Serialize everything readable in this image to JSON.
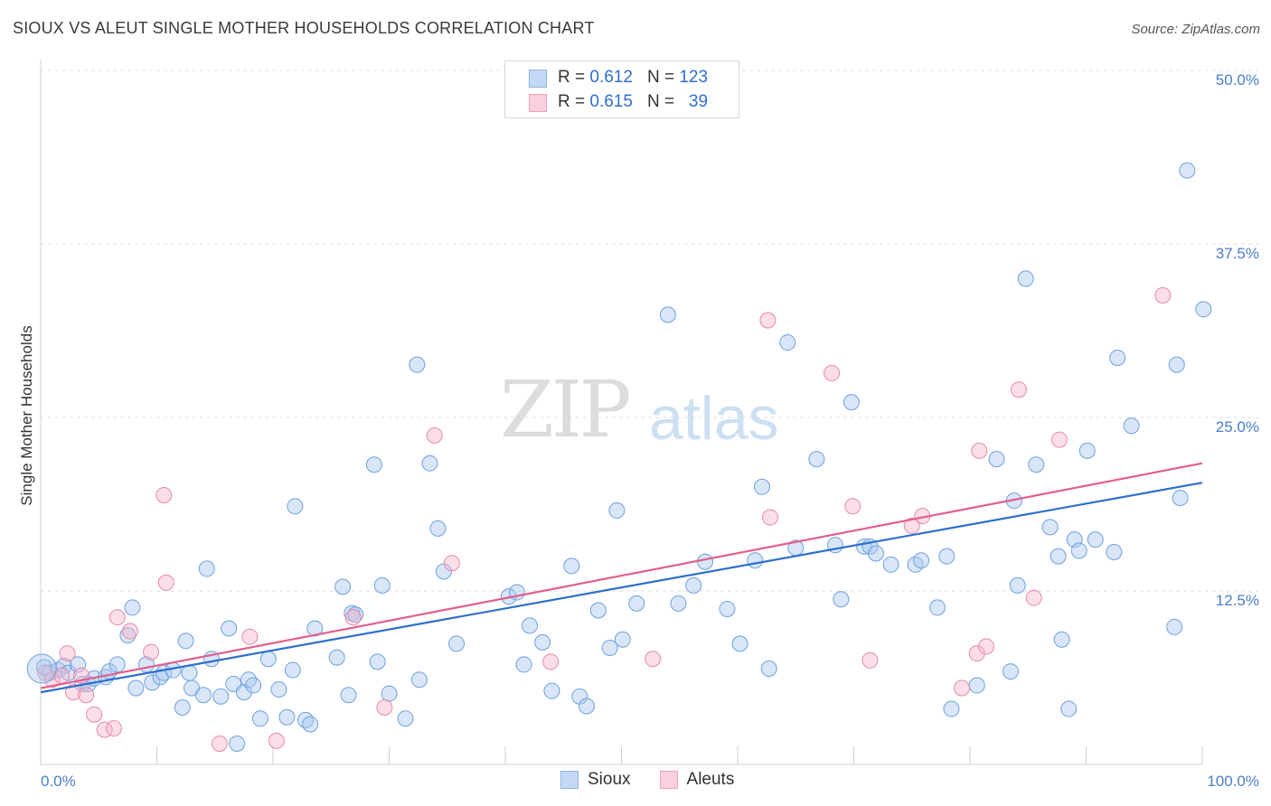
{
  "title": "SIOUX VS ALEUT SINGLE MOTHER HOUSEHOLDS CORRELATION CHART",
  "source": "Source: ZipAtlas.com",
  "watermark": {
    "zip": "ZIP",
    "atlas": "atlas"
  },
  "legend_top": {
    "rows": [
      {
        "r_label": "R =",
        "r_value": "0.612",
        "n_label": "N =",
        "n_value": "123",
        "color": "#a9c8f0"
      },
      {
        "r_label": "R =",
        "r_value": "0.615",
        "n_label": "N =",
        "n_value": "39",
        "color": "#f6b6cb"
      }
    ]
  },
  "legend_bottom": [
    {
      "label": "Sioux",
      "color": "#a9c8f0"
    },
    {
      "label": "Aleuts",
      "color": "#f6b6cb"
    }
  ],
  "chart_data": {
    "type": "scatter",
    "title": "SIOUX VS ALEUT SINGLE MOTHER HOUSEHOLDS CORRELATION CHART",
    "xlabel": "",
    "ylabel": "Single Mother Households",
    "xlim": [
      0,
      100
    ],
    "ylim": [
      0,
      50
    ],
    "x_tick_labels": [
      "0.0%",
      "100.0%"
    ],
    "y_ticks": [
      12.5,
      25.0,
      37.5,
      50.0
    ],
    "y_tick_labels": [
      "12.5%",
      "25.0%",
      "37.5%",
      "50.0%"
    ],
    "grid": true,
    "series": [
      {
        "name": "Sioux",
        "color": "#a9c8f0",
        "edge": "#6fa1dd",
        "line_color": "#2d6fcc",
        "trend": {
          "x": [
            0,
            100
          ],
          "y": [
            5.2,
            20.3
          ]
        },
        "points": [
          [
            0.3,
            7.0
          ],
          [
            0.8,
            6.6
          ],
          [
            1.5,
            6.8
          ],
          [
            2.0,
            7.1
          ],
          [
            2.4,
            6.6
          ],
          [
            3.2,
            7.2
          ],
          [
            3.6,
            5.8
          ],
          [
            4.1,
            5.8
          ],
          [
            4.6,
            6.2
          ],
          [
            5.6,
            6.3
          ],
          [
            5.9,
            6.7
          ],
          [
            6.6,
            7.2
          ],
          [
            7.5,
            9.3
          ],
          [
            7.9,
            11.3
          ],
          [
            8.2,
            5.5
          ],
          [
            9.1,
            7.2
          ],
          [
            9.6,
            5.9
          ],
          [
            10.3,
            6.3
          ],
          [
            10.6,
            6.6
          ],
          [
            11.4,
            6.8
          ],
          [
            12.2,
            4.1
          ],
          [
            12.5,
            8.9
          ],
          [
            12.8,
            6.6
          ],
          [
            13.0,
            5.5
          ],
          [
            14.0,
            5.0
          ],
          [
            14.3,
            14.1
          ],
          [
            14.7,
            7.6
          ],
          [
            15.5,
            4.9
          ],
          [
            16.2,
            9.8
          ],
          [
            16.6,
            5.8
          ],
          [
            16.9,
            1.5
          ],
          [
            17.5,
            5.2
          ],
          [
            17.9,
            6.1
          ],
          [
            18.3,
            5.7
          ],
          [
            18.9,
            3.3
          ],
          [
            19.6,
            7.6
          ],
          [
            20.5,
            5.4
          ],
          [
            21.2,
            3.4
          ],
          [
            21.7,
            6.8
          ],
          [
            21.9,
            18.6
          ],
          [
            22.8,
            3.2
          ],
          [
            23.2,
            2.9
          ],
          [
            23.6,
            9.8
          ],
          [
            25.5,
            7.7
          ],
          [
            26.0,
            12.8
          ],
          [
            26.5,
            5.0
          ],
          [
            26.8,
            10.9
          ],
          [
            27.1,
            10.8
          ],
          [
            28.7,
            21.6
          ],
          [
            29.0,
            7.4
          ],
          [
            29.4,
            12.9
          ],
          [
            30.0,
            5.1
          ],
          [
            31.4,
            3.3
          ],
          [
            32.4,
            28.8
          ],
          [
            32.6,
            6.1
          ],
          [
            33.5,
            21.7
          ],
          [
            34.2,
            17.0
          ],
          [
            34.7,
            13.9
          ],
          [
            35.8,
            8.7
          ],
          [
            40.3,
            12.1
          ],
          [
            41.0,
            12.4
          ],
          [
            41.6,
            7.2
          ],
          [
            42.1,
            10.0
          ],
          [
            43.2,
            8.8
          ],
          [
            44.0,
            5.3
          ],
          [
            45.7,
            14.3
          ],
          [
            46.4,
            4.9
          ],
          [
            47.0,
            4.2
          ],
          [
            48.0,
            11.1
          ],
          [
            49.0,
            8.4
          ],
          [
            49.6,
            18.3
          ],
          [
            50.1,
            9.0
          ],
          [
            51.3,
            11.6
          ],
          [
            54.0,
            32.4
          ],
          [
            54.9,
            11.6
          ],
          [
            56.2,
            12.9
          ],
          [
            57.2,
            14.6
          ],
          [
            59.1,
            11.2
          ],
          [
            60.2,
            8.7
          ],
          [
            61.5,
            14.7
          ],
          [
            62.1,
            20.0
          ],
          [
            62.7,
            6.9
          ],
          [
            64.3,
            30.4
          ],
          [
            65.0,
            15.6
          ],
          [
            66.8,
            22.0
          ],
          [
            68.4,
            15.8
          ],
          [
            68.9,
            11.9
          ],
          [
            69.8,
            26.1
          ],
          [
            70.9,
            15.7
          ],
          [
            71.4,
            15.7
          ],
          [
            71.9,
            15.2
          ],
          [
            73.2,
            14.4
          ],
          [
            75.3,
            14.4
          ],
          [
            75.8,
            14.7
          ],
          [
            77.2,
            11.3
          ],
          [
            78.0,
            15.0
          ],
          [
            78.4,
            4.0
          ],
          [
            80.6,
            5.7
          ],
          [
            82.3,
            22.0
          ],
          [
            83.5,
            6.7
          ],
          [
            83.8,
            19.0
          ],
          [
            84.1,
            12.9
          ],
          [
            84.8,
            35.0
          ],
          [
            85.7,
            21.6
          ],
          [
            86.9,
            17.1
          ],
          [
            87.6,
            15.0
          ],
          [
            87.9,
            9.0
          ],
          [
            88.5,
            4.0
          ],
          [
            89.0,
            16.2
          ],
          [
            89.4,
            15.4
          ],
          [
            90.1,
            22.6
          ],
          [
            90.8,
            16.2
          ],
          [
            92.4,
            15.3
          ],
          [
            92.7,
            29.3
          ],
          [
            93.9,
            24.4
          ],
          [
            97.6,
            9.9
          ],
          [
            97.8,
            28.8
          ],
          [
            98.1,
            19.2
          ],
          [
            98.7,
            42.8
          ],
          [
            100.1,
            32.8
          ]
        ]
      },
      {
        "name": "Aleuts",
        "color": "#f6b6cb",
        "edge": "#e78aa8",
        "line_color": "#e0608c",
        "trend": {
          "x": [
            0,
            100
          ],
          "y": [
            5.5,
            21.7
          ]
        },
        "points": [
          [
            0.4,
            6.6
          ],
          [
            1.0,
            6.1
          ],
          [
            1.8,
            6.4
          ],
          [
            2.3,
            8.0
          ],
          [
            2.8,
            5.2
          ],
          [
            3.5,
            6.4
          ],
          [
            3.9,
            5.0
          ],
          [
            4.6,
            3.6
          ],
          [
            5.5,
            2.5
          ],
          [
            6.3,
            2.6
          ],
          [
            6.6,
            10.6
          ],
          [
            7.7,
            9.6
          ],
          [
            9.5,
            8.1
          ],
          [
            10.6,
            19.4
          ],
          [
            10.8,
            13.1
          ],
          [
            15.4,
            1.5
          ],
          [
            18.0,
            9.2
          ],
          [
            20.3,
            1.7
          ],
          [
            26.9,
            10.6
          ],
          [
            29.6,
            4.1
          ],
          [
            33.9,
            23.7
          ],
          [
            35.4,
            14.5
          ],
          [
            43.9,
            7.4
          ],
          [
            52.7,
            7.6
          ],
          [
            62.6,
            32.0
          ],
          [
            62.8,
            17.8
          ],
          [
            68.1,
            28.2
          ],
          [
            69.9,
            18.6
          ],
          [
            71.4,
            7.5
          ],
          [
            75.0,
            17.2
          ],
          [
            75.9,
            17.9
          ],
          [
            79.3,
            5.5
          ],
          [
            80.6,
            8.0
          ],
          [
            80.8,
            22.6
          ],
          [
            81.4,
            8.5
          ],
          [
            84.2,
            27.0
          ],
          [
            85.5,
            12.0
          ],
          [
            87.7,
            23.4
          ],
          [
            96.6,
            33.8
          ]
        ]
      }
    ]
  }
}
